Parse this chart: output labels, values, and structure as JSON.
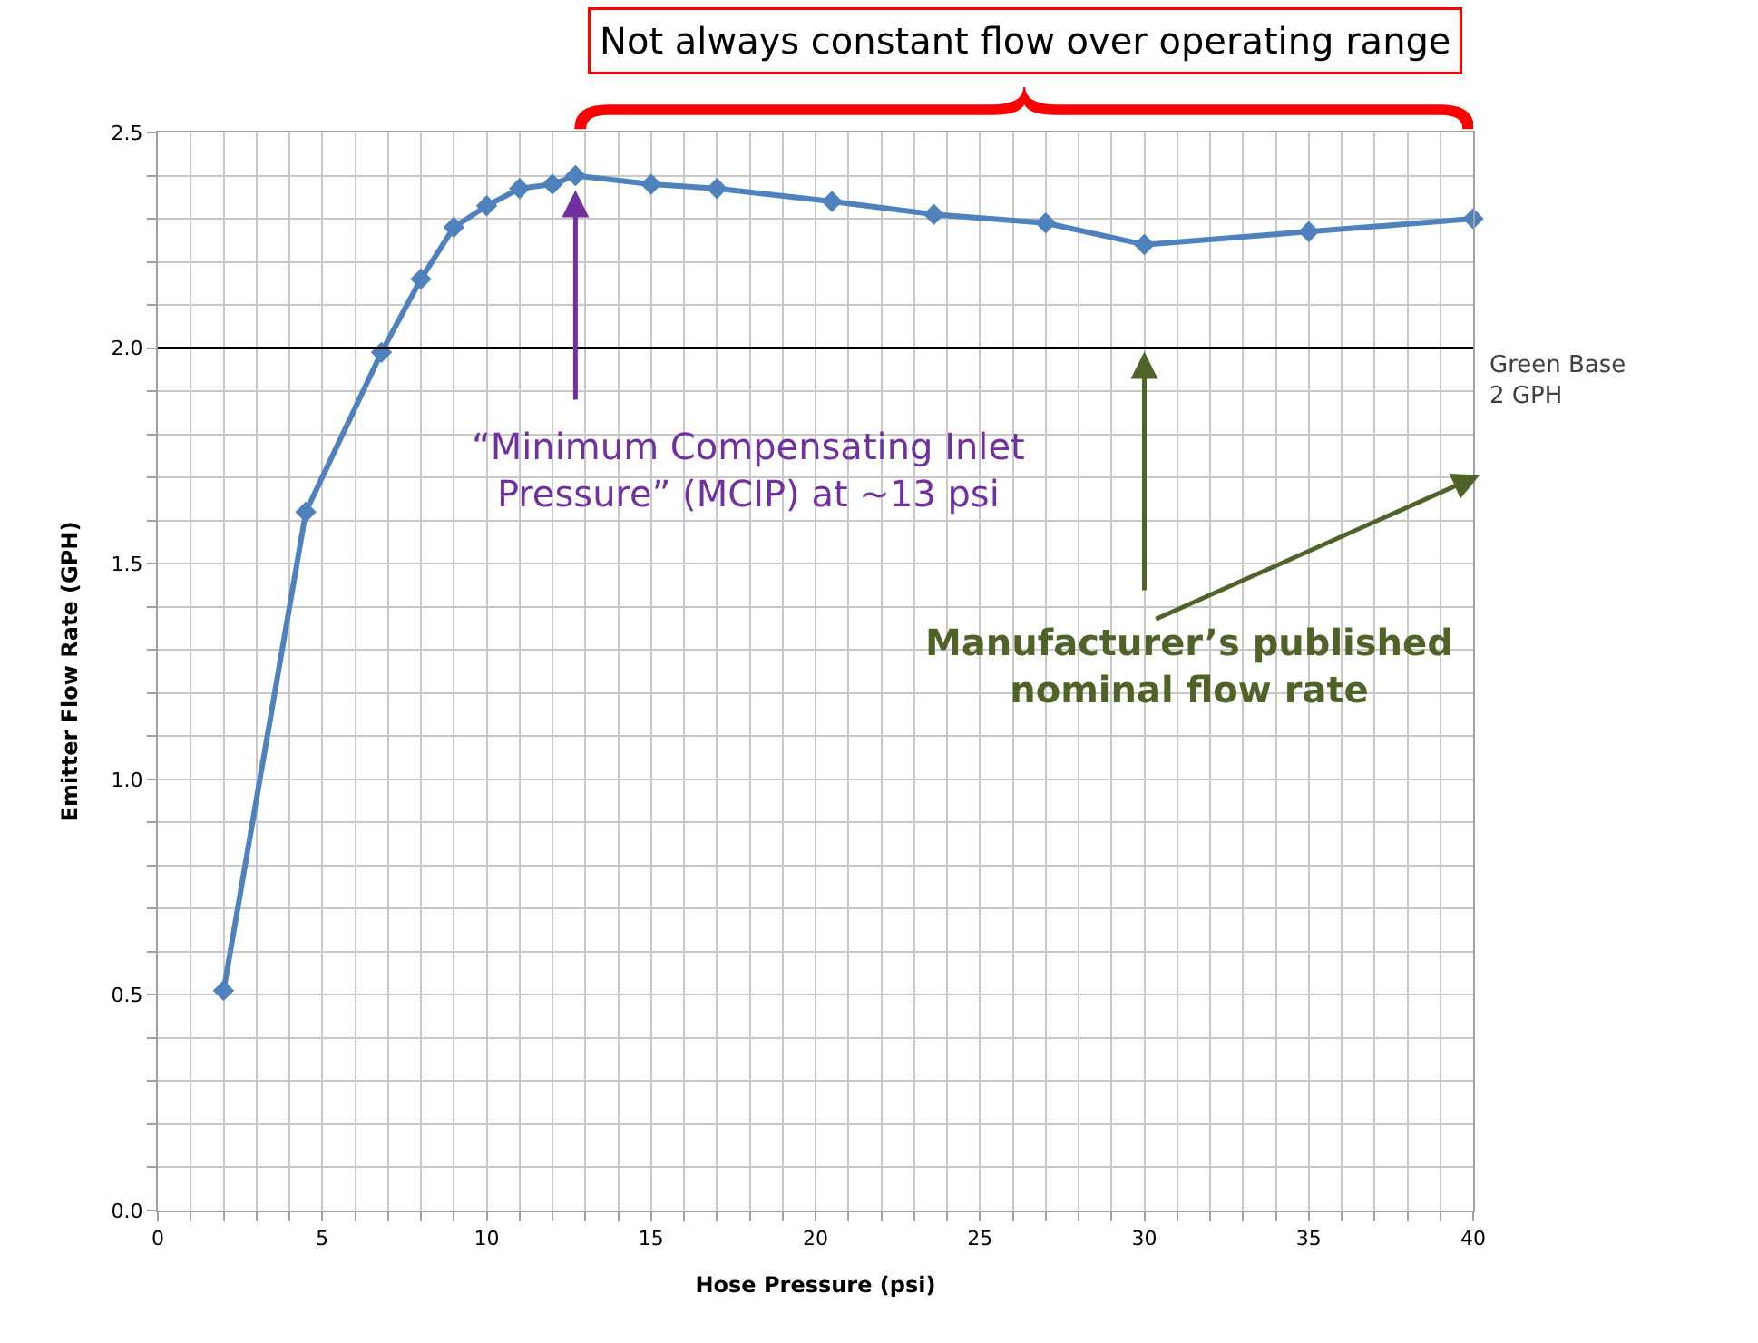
{
  "chart_data": {
    "type": "line",
    "xlabel": "Hose Pressure (psi)",
    "ylabel": "Emitter Flow Rate (GPH)",
    "x": [
      2,
      4.5,
      6.8,
      8,
      9,
      10,
      11,
      12,
      12.7,
      15,
      17,
      20.5,
      23.6,
      27,
      30,
      35,
      40
    ],
    "series": [
      {
        "color": "#4f81bd",
        "values": [
          0.51,
          1.62,
          1.99,
          2.16,
          2.28,
          2.33,
          2.37,
          2.38,
          2.4,
          2.38,
          2.37,
          2.34,
          2.31,
          2.29,
          2.24,
          2.27,
          2.3
        ]
      }
    ],
    "marker": "diamond",
    "line_style": "solid",
    "grid": true,
    "xlim": [
      0,
      40
    ],
    "ylim": [
      0,
      2.5
    ],
    "xticks": [
      0,
      {
        "value": 1,
        "label": null
      },
      {
        "value": 2,
        "label": null
      },
      {
        "value": 3,
        "label": null
      },
      {
        "value": 4,
        "label": null
      },
      5,
      {
        "value": 6,
        "label": null
      },
      {
        "value": 7,
        "label": null
      },
      {
        "value": 8,
        "label": null
      },
      {
        "value": 9,
        "label": null
      },
      10,
      {
        "value": 11,
        "label": null
      },
      {
        "value": 12,
        "label": null
      },
      {
        "value": 13,
        "label": null
      },
      {
        "value": 14,
        "label": null
      },
      15,
      {
        "value": 16,
        "label": null
      },
      {
        "value": 17,
        "label": null
      },
      {
        "value": 18,
        "label": null
      },
      {
        "value": 19,
        "label": null
      },
      20,
      {
        "value": 21,
        "label": null
      },
      {
        "value": 22,
        "label": null
      },
      {
        "value": 23,
        "label": null
      },
      {
        "value": 24,
        "label": null
      },
      25,
      {
        "value": 26,
        "label": null
      },
      {
        "value": 27,
        "label": null
      },
      {
        "value": 28,
        "label": null
      },
      {
        "value": 29,
        "label": null
      },
      30,
      {
        "value": 31,
        "label": null
      },
      {
        "value": 32,
        "label": null
      },
      {
        "value": 33,
        "label": null
      },
      {
        "value": 34,
        "label": null
      },
      35,
      {
        "value": 36,
        "label": null
      },
      {
        "value": 37,
        "label": null
      },
      {
        "value": 38,
        "label": null
      },
      {
        "value": 39,
        "label": null
      },
      40
    ],
    "yticks": [
      {
        "value": 0,
        "label": "0.0"
      },
      {
        "value": 0.1,
        "label": null
      },
      {
        "value": 0.2,
        "label": null
      },
      {
        "value": 0.3,
        "label": null
      },
      {
        "value": 0.4,
        "label": null
      },
      0.5,
      {
        "value": 0.6,
        "label": null
      },
      {
        "value": 0.7,
        "label": null
      },
      {
        "value": 0.8,
        "label": null
      },
      {
        "value": 0.9,
        "label": null
      },
      {
        "value": 1,
        "label": "1.0"
      },
      {
        "value": 1.1,
        "label": null
      },
      {
        "value": 1.2,
        "label": null
      },
      {
        "value": 1.3,
        "label": null
      },
      {
        "value": 1.4,
        "label": null
      },
      1.5,
      {
        "value": 1.6,
        "label": null
      },
      {
        "value": 1.7,
        "label": null
      },
      {
        "value": 1.8,
        "label": null
      },
      {
        "value": 1.9,
        "label": null
      },
      {
        "value": 2,
        "label": "2.0"
      },
      {
        "value": 2.1,
        "label": null
      },
      {
        "value": 2.2,
        "label": null
      },
      {
        "value": 2.3,
        "label": null
      },
      {
        "value": 2.4,
        "label": null
      },
      2.5
    ],
    "ref_lines": [
      {
        "axis": "y",
        "value": 2.0,
        "label": "Green Base\n2 GPH",
        "color": "#000000"
      }
    ],
    "annotations": [
      "Not always constant flow over operating range",
      {
        "text": "“Minimum Compensating Inlet Pressure” (MCIP) at ~13 psi",
        "x": 12.7,
        "y": 2.4
      },
      {
        "text": "Manufacturer’s published nominal flow rate",
        "x": 30,
        "y": 2.0
      }
    ]
  }
}
